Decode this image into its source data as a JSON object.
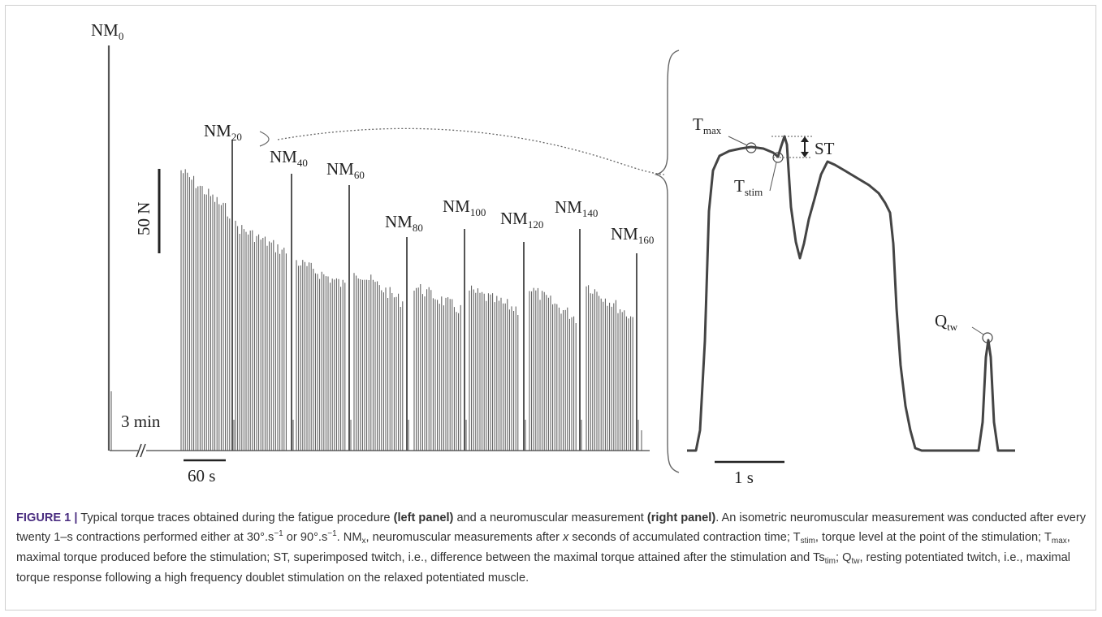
{
  "figure": {
    "left_panel": {
      "nm_labels": [
        {
          "base": "NM",
          "sub": "0"
        },
        {
          "base": "NM",
          "sub": "20"
        },
        {
          "base": "NM",
          "sub": "40"
        },
        {
          "base": "NM",
          "sub": "60"
        },
        {
          "base": "NM",
          "sub": "80"
        },
        {
          "base": "NM",
          "sub": "100"
        },
        {
          "base": "NM",
          "sub": "120"
        },
        {
          "base": "NM",
          "sub": "140"
        },
        {
          "base": "NM",
          "sub": "160"
        }
      ],
      "force_scale": "50 N",
      "break_label": "3 min",
      "time_scale": "60 s"
    },
    "right_panel": {
      "tmax": {
        "base": "T",
        "sub": "max"
      },
      "tstim": {
        "base": "T",
        "sub": "stim"
      },
      "st": "ST",
      "qtw": {
        "base": "Q",
        "sub": "tw"
      },
      "time_scale": "1 s"
    }
  },
  "caption": {
    "head": "FIGURE 1 |",
    "p1": " Typical torque traces obtained during the fatigue procedure ",
    "b1": "(left panel)",
    "p2": " and a neuromuscular measurement ",
    "b2": "(right panel)",
    "p3": ". An isometric neuromuscular measurement was conducted after every twenty 1–s contractions performed either at 30°.s",
    "sup1": "−1",
    "p4": " or 90°.s",
    "sup2": "−1",
    "p5": ". NM",
    "sub_x": "x",
    "p6": ", neuromuscular measurements after ",
    "ital_x": "x",
    "p7": " seconds of accumulated contraction time; T",
    "sub_stim": "stim",
    "p8": ", torque level at the point of the stimulation; T",
    "sub_max": "max",
    "p9": ", maximal torque produced before the stimulation; ST, superimposed twitch, i.e., difference between the maximal torque attained after the stimulation and Ts",
    "sub_tim": "tim",
    "p10": "; Q",
    "sub_tw": "tw",
    "p11": ", resting potentiated twitch, i.e., maximal torque response following a high frequency doublet stimulation on the relaxed potentiated muscle."
  }
}
